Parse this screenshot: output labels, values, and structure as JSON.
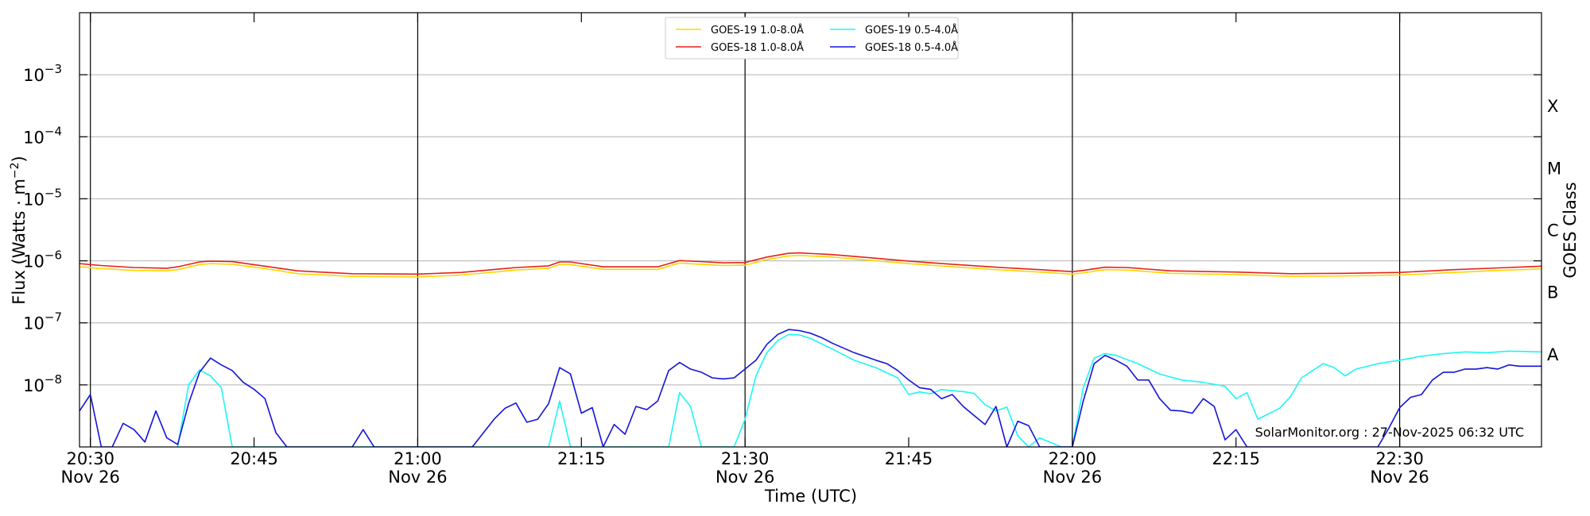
{
  "chart_data": {
    "type": "line",
    "title": "",
    "xlabel": "Time (UTC)",
    "ylabel": "Flux (Watts · m⁻²)",
    "right_label": "GOES Class",
    "y_scale": "log",
    "ylim": [
      1e-09,
      0.01
    ],
    "xlim": [
      "20:29",
      "22:43"
    ],
    "grid": "horizontal gridlines at decades; vertical lines every 30 min",
    "y_ticks": [
      {
        "value": 1e-08,
        "base": "10",
        "exp": "−8"
      },
      {
        "value": 1e-07,
        "base": "10",
        "exp": "−7"
      },
      {
        "value": 1e-06,
        "base": "10",
        "exp": "−6"
      },
      {
        "value": 1e-05,
        "base": "10",
        "exp": "−5"
      },
      {
        "value": 0.0001,
        "base": "10",
        "exp": "−4"
      },
      {
        "value": 0.001,
        "base": "10",
        "exp": "−3"
      }
    ],
    "x_ticks": [
      {
        "t": "20:30",
        "label": "20:30",
        "sub": "Nov 26"
      },
      {
        "t": "20:45",
        "label": "20:45",
        "sub": ""
      },
      {
        "t": "21:00",
        "label": "21:00",
        "sub": "Nov 26"
      },
      {
        "t": "21:15",
        "label": "21:15",
        "sub": ""
      },
      {
        "t": "21:30",
        "label": "21:30",
        "sub": "Nov 26"
      },
      {
        "t": "21:45",
        "label": "21:45",
        "sub": ""
      },
      {
        "t": "22:00",
        "label": "22:00",
        "sub": "Nov 26"
      },
      {
        "t": "22:15",
        "label": "22:15",
        "sub": ""
      },
      {
        "t": "22:30",
        "label": "22:30",
        "sub": "Nov 26"
      }
    ],
    "vertical_lines": [
      "20:30",
      "21:00",
      "21:30",
      "22:00",
      "22:30"
    ],
    "goes_classes": [
      {
        "label": "A",
        "value": 3.16e-08
      },
      {
        "label": "B",
        "value": 3.16e-07
      },
      {
        "label": "C",
        "value": 3.16e-06
      },
      {
        "label": "M",
        "value": 3.16e-05
      },
      {
        "label": "X",
        "value": 0.000316
      }
    ],
    "legend_location": "top-center",
    "credit": "SolarMonitor.org : 27-Nov-2025 06:32 UTC",
    "series": [
      {
        "name": "GOES-19 1.0-8.0Å",
        "color": "#ffd700",
        "points": [
          [
            "20:29",
            8e-07
          ],
          [
            "20:31",
            7.5e-07
          ],
          [
            "20:34",
            7e-07
          ],
          [
            "20:37",
            6.9e-07
          ],
          [
            "20:38",
            7.2e-07
          ],
          [
            "20:40",
            8.7e-07
          ],
          [
            "20:41",
            9e-07
          ],
          [
            "20:43",
            8.8e-07
          ],
          [
            "20:46",
            7.5e-07
          ],
          [
            "20:49",
            6.2e-07
          ],
          [
            "20:54",
            5.6e-07
          ],
          [
            "21:00",
            5.5e-07
          ],
          [
            "21:04",
            5.9e-07
          ],
          [
            "21:09",
            7.1e-07
          ],
          [
            "21:12",
            7.6e-07
          ],
          [
            "21:13",
            8.7e-07
          ],
          [
            "21:14",
            8.7e-07
          ],
          [
            "21:17",
            7.3e-07
          ],
          [
            "21:22",
            7.3e-07
          ],
          [
            "21:24",
            9.2e-07
          ],
          [
            "21:28",
            8.4e-07
          ],
          [
            "21:30",
            8.5e-07
          ],
          [
            "21:32",
            1.05e-06
          ],
          [
            "21:34",
            1.2e-06
          ],
          [
            "21:35",
            1.22e-06
          ],
          [
            "21:38",
            1.15e-06
          ],
          [
            "21:42",
            1e-06
          ],
          [
            "21:45",
            9e-07
          ],
          [
            "21:49",
            8e-07
          ],
          [
            "21:53",
            7.2e-07
          ],
          [
            "21:57",
            6.6e-07
          ],
          [
            "22:00",
            6.1e-07
          ],
          [
            "22:01",
            6.4e-07
          ],
          [
            "22:03",
            7.2e-07
          ],
          [
            "22:05",
            7.1e-07
          ],
          [
            "22:09",
            6.3e-07
          ],
          [
            "22:15",
            6e-07
          ],
          [
            "22:20",
            5.6e-07
          ],
          [
            "22:25",
            5.7e-07
          ],
          [
            "22:30",
            5.9e-07
          ],
          [
            "22:35",
            6.5e-07
          ],
          [
            "22:40",
            7.1e-07
          ],
          [
            "22:43",
            7.4e-07
          ]
        ]
      },
      {
        "name": "GOES-18 1.0-8.0Å",
        "color": "#e8201a",
        "points": [
          [
            "20:29",
            9e-07
          ],
          [
            "20:31",
            8.4e-07
          ],
          [
            "20:34",
            7.8e-07
          ],
          [
            "20:37",
            7.6e-07
          ],
          [
            "20:38",
            8e-07
          ],
          [
            "20:40",
            9.6e-07
          ],
          [
            "20:41",
            9.9e-07
          ],
          [
            "20:43",
            9.7e-07
          ],
          [
            "20:46",
            8.2e-07
          ],
          [
            "20:49",
            6.9e-07
          ],
          [
            "20:54",
            6.2e-07
          ],
          [
            "21:00",
            6.1e-07
          ],
          [
            "21:04",
            6.5e-07
          ],
          [
            "21:09",
            7.8e-07
          ],
          [
            "21:12",
            8.3e-07
          ],
          [
            "21:13",
            9.6e-07
          ],
          [
            "21:14",
            9.6e-07
          ],
          [
            "21:17",
            8e-07
          ],
          [
            "21:22",
            8e-07
          ],
          [
            "21:24",
            1.01e-06
          ],
          [
            "21:28",
            9.3e-07
          ],
          [
            "21:30",
            9.4e-07
          ],
          [
            "21:32",
            1.15e-06
          ],
          [
            "21:34",
            1.32e-06
          ],
          [
            "21:35",
            1.34e-06
          ],
          [
            "21:38",
            1.26e-06
          ],
          [
            "21:42",
            1.1e-06
          ],
          [
            "21:45",
            9.9e-07
          ],
          [
            "21:49",
            8.8e-07
          ],
          [
            "21:53",
            7.9e-07
          ],
          [
            "21:57",
            7.2e-07
          ],
          [
            "22:00",
            6.7e-07
          ],
          [
            "22:01",
            7e-07
          ],
          [
            "22:03",
            7.9e-07
          ],
          [
            "22:05",
            7.8e-07
          ],
          [
            "22:09",
            6.9e-07
          ],
          [
            "22:15",
            6.6e-07
          ],
          [
            "22:20",
            6.2e-07
          ],
          [
            "22:25",
            6.3e-07
          ],
          [
            "22:30",
            6.5e-07
          ],
          [
            "22:35",
            7.2e-07
          ],
          [
            "22:40",
            7.8e-07
          ],
          [
            "22:43",
            8.2e-07
          ]
        ]
      },
      {
        "name": "GOES-19 0.5-4.0Å",
        "color": "#1ff5f5",
        "points": [
          [
            "20:38",
            1e-09
          ],
          [
            "20:39",
            1e-08
          ],
          [
            "20:40",
            1.75e-08
          ],
          [
            "20:41",
            1.4e-08
          ],
          [
            "20:42",
            9e-09
          ],
          [
            "20:43",
            1e-09
          ],
          [
            "21:12",
            1e-09
          ],
          [
            "21:13",
            5.5e-09
          ],
          [
            "21:14",
            1e-09
          ],
          [
            "21:23",
            1e-09
          ],
          [
            "21:24",
            7.5e-09
          ],
          [
            "21:25",
            4.5e-09
          ],
          [
            "21:26",
            1e-09
          ],
          [
            "21:29",
            1e-09
          ],
          [
            "21:30",
            2.8e-09
          ],
          [
            "21:31",
            1.4e-08
          ],
          [
            "21:32",
            3.3e-08
          ],
          [
            "21:33",
            5.2e-08
          ],
          [
            "21:34",
            6.5e-08
          ],
          [
            "21:35",
            6.4e-08
          ],
          [
            "21:36",
            5.6e-08
          ],
          [
            "21:38",
            3.8e-08
          ],
          [
            "21:40",
            2.5e-08
          ],
          [
            "21:42",
            1.9e-08
          ],
          [
            "21:44",
            1.3e-08
          ],
          [
            "21:45",
            7e-09
          ],
          [
            "21:46",
            7.7e-09
          ],
          [
            "21:47",
            7.2e-09
          ],
          [
            "21:48",
            8.4e-09
          ],
          [
            "21:50",
            7.8e-09
          ],
          [
            "21:51",
            7.3e-09
          ],
          [
            "21:52",
            4.8e-09
          ],
          [
            "21:53",
            3.8e-09
          ],
          [
            "21:54",
            4.4e-09
          ],
          [
            "21:55",
            1.5e-09
          ],
          [
            "21:56",
            1e-09
          ],
          [
            "21:57",
            1.4e-09
          ],
          [
            "21:59",
            1e-09
          ],
          [
            "22:00",
            1e-09
          ],
          [
            "22:01",
            9e-09
          ],
          [
            "22:02",
            2.7e-08
          ],
          [
            "22:03",
            3.2e-08
          ],
          [
            "22:04",
            3e-08
          ],
          [
            "22:06",
            2.2e-08
          ],
          [
            "22:08",
            1.5e-08
          ],
          [
            "22:10",
            1.2e-08
          ],
          [
            "22:12",
            1.1e-08
          ],
          [
            "22:14",
            9.5e-09
          ],
          [
            "22:15",
            6e-09
          ],
          [
            "22:16",
            7.5e-09
          ],
          [
            "22:17",
            2.8e-09
          ],
          [
            "22:19",
            4.2e-09
          ],
          [
            "22:20",
            6.5e-09
          ],
          [
            "22:21",
            1.3e-08
          ],
          [
            "22:23",
            2.2e-08
          ],
          [
            "22:24",
            1.9e-08
          ],
          [
            "22:25",
            1.4e-08
          ],
          [
            "22:26",
            1.8e-08
          ],
          [
            "22:28",
            2.2e-08
          ],
          [
            "22:30",
            2.5e-08
          ],
          [
            "22:32",
            2.9e-08
          ],
          [
            "22:34",
            3.2e-08
          ],
          [
            "22:36",
            3.4e-08
          ],
          [
            "22:38",
            3.3e-08
          ],
          [
            "22:40",
            3.5e-08
          ],
          [
            "22:43",
            3.4e-08
          ]
        ]
      },
      {
        "name": "GOES-18 0.5-4.0Å",
        "color": "#1414d8",
        "points": [
          [
            "20:29",
            3.8e-09
          ],
          [
            "20:30",
            7e-09
          ],
          [
            "20:31",
            1e-09
          ],
          [
            "20:32",
            1e-09
          ],
          [
            "20:33",
            2.4e-09
          ],
          [
            "20:34",
            1.9e-09
          ],
          [
            "20:35",
            1.2e-09
          ],
          [
            "20:36",
            3.8e-09
          ],
          [
            "20:37",
            1.4e-09
          ],
          [
            "20:38",
            1.1e-09
          ],
          [
            "20:39",
            5e-09
          ],
          [
            "20:40",
            1.6e-08
          ],
          [
            "20:41",
            2.7e-08
          ],
          [
            "20:42",
            2.1e-08
          ],
          [
            "20:43",
            1.7e-08
          ],
          [
            "20:44",
            1.1e-08
          ],
          [
            "20:45",
            8.5e-09
          ],
          [
            "20:46",
            6e-09
          ],
          [
            "20:47",
            1.7e-09
          ],
          [
            "20:48",
            1e-09
          ],
          [
            "20:54",
            1e-09
          ],
          [
            "20:55",
            1.9e-09
          ],
          [
            "20:56",
            1e-09
          ],
          [
            "21:05",
            1e-09
          ],
          [
            "21:07",
            2.8e-09
          ],
          [
            "21:08",
            4.2e-09
          ],
          [
            "21:09",
            5.1e-09
          ],
          [
            "21:10",
            2.5e-09
          ],
          [
            "21:11",
            2.8e-09
          ],
          [
            "21:12",
            5e-09
          ],
          [
            "21:13",
            1.9e-08
          ],
          [
            "21:14",
            1.5e-08
          ],
          [
            "21:15",
            3.5e-09
          ],
          [
            "21:16",
            4.3e-09
          ],
          [
            "21:17",
            1e-09
          ],
          [
            "21:18",
            2.3e-09
          ],
          [
            "21:19",
            1.6e-09
          ],
          [
            "21:20",
            4.5e-09
          ],
          [
            "21:21",
            4e-09
          ],
          [
            "21:22",
            5.5e-09
          ],
          [
            "21:23",
            1.7e-08
          ],
          [
            "21:24",
            2.3e-08
          ],
          [
            "21:25",
            1.8e-08
          ],
          [
            "21:26",
            1.6e-08
          ],
          [
            "21:27",
            1.3e-08
          ],
          [
            "21:28",
            1.25e-08
          ],
          [
            "21:29",
            1.3e-08
          ],
          [
            "21:30",
            1.8e-08
          ],
          [
            "21:31",
            2.5e-08
          ],
          [
            "21:32",
            4.5e-08
          ],
          [
            "21:33",
            6.5e-08
          ],
          [
            "21:34",
            7.8e-08
          ],
          [
            "21:35",
            7.5e-08
          ],
          [
            "21:36",
            6.8e-08
          ],
          [
            "21:37",
            5.8e-08
          ],
          [
            "21:38",
            4.7e-08
          ],
          [
            "21:40",
            3.3e-08
          ],
          [
            "21:42",
            2.5e-08
          ],
          [
            "21:43",
            2.2e-08
          ],
          [
            "21:44",
            1.7e-08
          ],
          [
            "21:45",
            1.2e-08
          ],
          [
            "21:46",
            9e-09
          ],
          [
            "21:47",
            8.5e-09
          ],
          [
            "21:48",
            6e-09
          ],
          [
            "21:49",
            7e-09
          ],
          [
            "21:50",
            4.5e-09
          ],
          [
            "21:51",
            3.2e-09
          ],
          [
            "21:52",
            2.3e-09
          ],
          [
            "21:53",
            4.5e-09
          ],
          [
            "21:54",
            1e-09
          ],
          [
            "21:55",
            2.6e-09
          ],
          [
            "21:56",
            2.2e-09
          ],
          [
            "21:57",
            1e-09
          ],
          [
            "22:00",
            1e-09
          ],
          [
            "22:01",
            5.5e-09
          ],
          [
            "22:02",
            2.2e-08
          ],
          [
            "22:03",
            3e-08
          ],
          [
            "22:04",
            2.5e-08
          ],
          [
            "22:05",
            2e-08
          ],
          [
            "22:06",
            1.2e-08
          ],
          [
            "22:07",
            1.2e-08
          ],
          [
            "22:08",
            6e-09
          ],
          [
            "22:09",
            3.9e-09
          ],
          [
            "22:10",
            3.8e-09
          ],
          [
            "22:11",
            3.5e-09
          ],
          [
            "22:12",
            6e-09
          ],
          [
            "22:13",
            4.5e-09
          ],
          [
            "22:14",
            1.3e-09
          ],
          [
            "22:15",
            1.9e-09
          ],
          [
            "22:16",
            1e-09
          ],
          [
            "22:28",
            1e-09
          ],
          [
            "22:29",
            2e-09
          ],
          [
            "22:30",
            4.3e-09
          ],
          [
            "22:31",
            6.3e-09
          ],
          [
            "22:32",
            7e-09
          ],
          [
            "22:33",
            1.2e-08
          ],
          [
            "22:34",
            1.6e-08
          ],
          [
            "22:35",
            1.6e-08
          ],
          [
            "22:36",
            1.8e-08
          ],
          [
            "22:37",
            1.8e-08
          ],
          [
            "22:38",
            1.9e-08
          ],
          [
            "22:39",
            1.8e-08
          ],
          [
            "22:40",
            2.1e-08
          ],
          [
            "22:41",
            2e-08
          ],
          [
            "22:43",
            2e-08
          ]
        ]
      }
    ]
  }
}
